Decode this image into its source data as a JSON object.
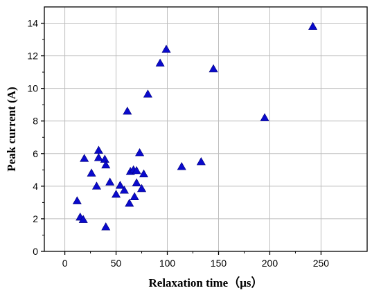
{
  "chart_data": {
    "type": "scatter",
    "xlabel": "Relaxation time（μs）",
    "ylabel": "Peak current (A)",
    "xlim": [
      -20,
      295
    ],
    "ylim": [
      0,
      15
    ],
    "x_ticks": [
      0,
      50,
      100,
      150,
      200,
      250
    ],
    "y_ticks": [
      0,
      2,
      4,
      6,
      8,
      10,
      12,
      14
    ],
    "x_grid": [
      0,
      50,
      100,
      150,
      200,
      250
    ],
    "y_grid": [
      2,
      4,
      6,
      8,
      10,
      12,
      14
    ],
    "grid": true,
    "marker": "triangle",
    "marker_color": "#0a0acc",
    "points": [
      {
        "x": 12,
        "y": 3.1
      },
      {
        "x": 15,
        "y": 2.1
      },
      {
        "x": 18,
        "y": 1.95
      },
      {
        "x": 19,
        "y": 5.7
      },
      {
        "x": 26,
        "y": 4.8
      },
      {
        "x": 31,
        "y": 4.0
      },
      {
        "x": 33,
        "y": 6.2
      },
      {
        "x": 33,
        "y": 5.75
      },
      {
        "x": 39,
        "y": 5.65
      },
      {
        "x": 40,
        "y": 5.3
      },
      {
        "x": 40,
        "y": 1.5
      },
      {
        "x": 44,
        "y": 4.25
      },
      {
        "x": 50,
        "y": 3.5
      },
      {
        "x": 54,
        "y": 4.05
      },
      {
        "x": 58,
        "y": 3.75
      },
      {
        "x": 61,
        "y": 8.6
      },
      {
        "x": 63,
        "y": 2.95
      },
      {
        "x": 64,
        "y": 4.9
      },
      {
        "x": 67,
        "y": 5.0
      },
      {
        "x": 68,
        "y": 3.35
      },
      {
        "x": 70,
        "y": 4.95
      },
      {
        "x": 70,
        "y": 4.2
      },
      {
        "x": 73,
        "y": 6.05
      },
      {
        "x": 75,
        "y": 3.85
      },
      {
        "x": 77,
        "y": 4.75
      },
      {
        "x": 81,
        "y": 9.65
      },
      {
        "x": 93,
        "y": 11.55
      },
      {
        "x": 99,
        "y": 12.4
      },
      {
        "x": 114,
        "y": 5.2
      },
      {
        "x": 133,
        "y": 5.5
      },
      {
        "x": 145,
        "y": 11.2
      },
      {
        "x": 195,
        "y": 8.2
      },
      {
        "x": 242,
        "y": 13.8
      }
    ]
  }
}
